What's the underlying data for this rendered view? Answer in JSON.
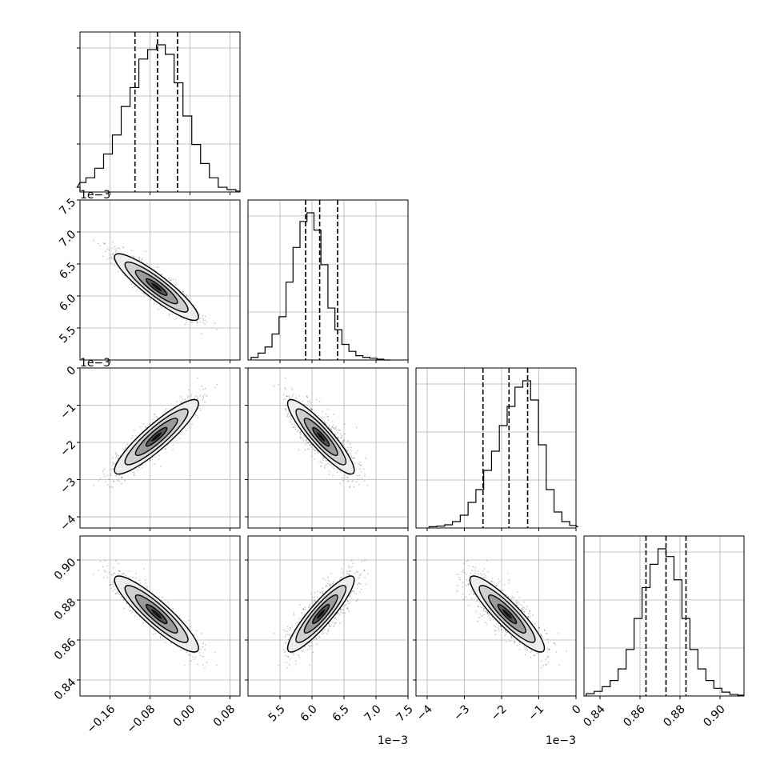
{
  "chart_data": {
    "type": "corner",
    "n_params": 4,
    "tick_labels_show_sign_as": "minus",
    "grid": true,
    "params": [
      {
        "range": [
          -0.22,
          0.1
        ],
        "ticks": [
          -0.16,
          -0.08,
          0.0,
          0.08
        ],
        "tick_labels": [
          "−0.16",
          "−0.08",
          "0.00",
          "0.08"
        ],
        "offset_text": "",
        "quantiles": [
          -0.11,
          -0.065,
          -0.025
        ],
        "hist_counts": [
          1,
          2,
          3,
          5,
          8,
          12,
          18,
          22,
          28,
          30,
          31,
          29,
          23,
          16,
          10,
          6,
          3,
          1,
          0.5,
          0.2
        ],
        "mean": -0.067,
        "sd": 0.042
      },
      {
        "range": [
          5.0,
          7.5
        ],
        "ticks": [
          5.5,
          6.0,
          6.5,
          7.0,
          7.5
        ],
        "tick_labels": [
          "5.5",
          "6.0",
          "6.5",
          "7.0",
          "7.5"
        ],
        "offset_text": "1e−3",
        "quantiles": [
          5.9,
          6.12,
          6.4
        ],
        "hist_counts": [
          0.3,
          0.8,
          1.5,
          3,
          5,
          9,
          13,
          16,
          17,
          15,
          11,
          6,
          3.5,
          1.8,
          1,
          0.5,
          0.3,
          0.2,
          0.1,
          0
        ],
        "mean": 6.14,
        "sd": 0.26
      },
      {
        "range": [
          -4.3,
          0.0
        ],
        "ticks": [
          -4,
          -3,
          -2,
          -1,
          0
        ],
        "tick_labels": [
          "−4",
          "−3",
          "−2",
          "−1",
          "0"
        ],
        "offset_text": "1e−3",
        "quantiles": [
          -2.5,
          -1.8,
          -1.3
        ],
        "hist_counts": [
          0.2,
          0.3,
          0.5,
          1,
          2,
          4,
          6,
          9,
          12,
          16,
          19,
          22,
          23,
          20,
          13,
          6,
          2.5,
          1,
          0.4,
          0.2
        ],
        "mean": -1.85,
        "sd": 0.5
      },
      {
        "range": [
          0.832,
          0.912
        ],
        "ticks": [
          0.84,
          0.86,
          0.88,
          0.9
        ],
        "tick_labels": [
          "0.84",
          "0.86",
          "0.88",
          "0.90"
        ],
        "offset_text": "",
        "quantiles": [
          0.863,
          0.873,
          0.883
        ],
        "hist_counts": [
          0.3,
          0.6,
          1.2,
          2,
          3.5,
          6,
          10,
          14,
          17,
          19,
          18,
          15,
          10,
          6,
          3.5,
          2,
          1,
          0.5,
          0.2,
          0.1
        ],
        "mean": 0.873,
        "sd": 0.0095
      }
    ],
    "correlations": [
      [
        1.0,
        -0.9,
        0.9,
        -0.9
      ],
      [
        -0.9,
        1.0,
        -0.9,
        0.9
      ],
      [
        0.9,
        -0.9,
        1.0,
        -0.9
      ],
      [
        -0.9,
        0.9,
        -0.9,
        1.0
      ]
    ],
    "contour_levels_sigma": [
      0.5,
      1.0,
      1.5,
      2.0
    ],
    "scatter_points_per_panel": 1000
  }
}
